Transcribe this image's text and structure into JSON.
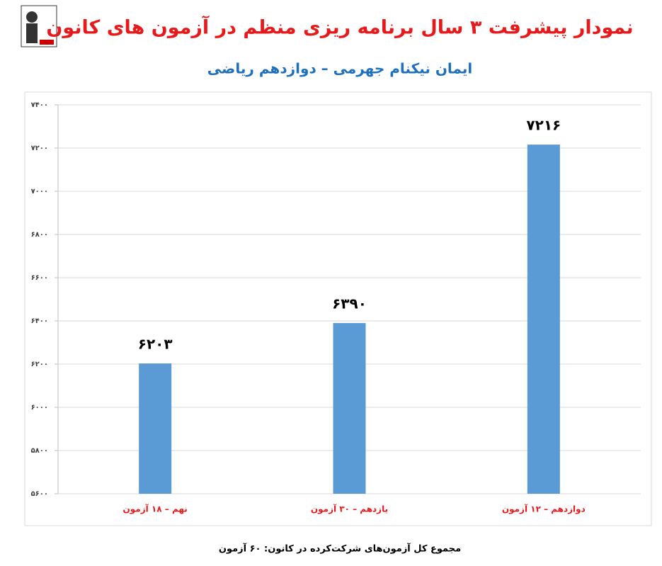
{
  "chart_data": {
    "type": "bar",
    "title": "نمودار پیشرفت ۳ سال برنامه ریزی منظم در آزمون های کانون",
    "subtitle": "ایمان نیکنام جهرمی – دوازدهم ریاضی",
    "footer": "مجموع کل آزمون‌های شرکت‌کرده در کانون: ۶۰ آزمون",
    "categories": [
      "نهم – ۱۸ آزمون",
      "یازدهم – ۳۰ آزمون",
      "دوازدهم – ۱۲ آزمون"
    ],
    "values": [
      6203,
      6390,
      7216
    ],
    "value_labels": [
      "۶۲۰۳",
      "۶۳۹۰",
      "۷۲۱۶"
    ],
    "color": "#5b9bd5",
    "ylim": [
      5600,
      7400
    ],
    "yticks": [
      {
        "value": 5600,
        "label": "۵۶۰۰"
      },
      {
        "value": 5800,
        "label": "۵۸۰۰"
      },
      {
        "value": 6000,
        "label": "۶۰۰۰"
      },
      {
        "value": 6200,
        "label": "۶۲۰۰"
      },
      {
        "value": 6400,
        "label": "۶۴۰۰"
      },
      {
        "value": 6600,
        "label": "۶۶۰۰"
      },
      {
        "value": 6800,
        "label": "۶۸۰۰"
      },
      {
        "value": 7000,
        "label": "۷۰۰۰"
      },
      {
        "value": 7200,
        "label": "۷۲۰۰"
      },
      {
        "value": 7400,
        "label": "۷۴۰۰"
      }
    ],
    "grid": true
  }
}
